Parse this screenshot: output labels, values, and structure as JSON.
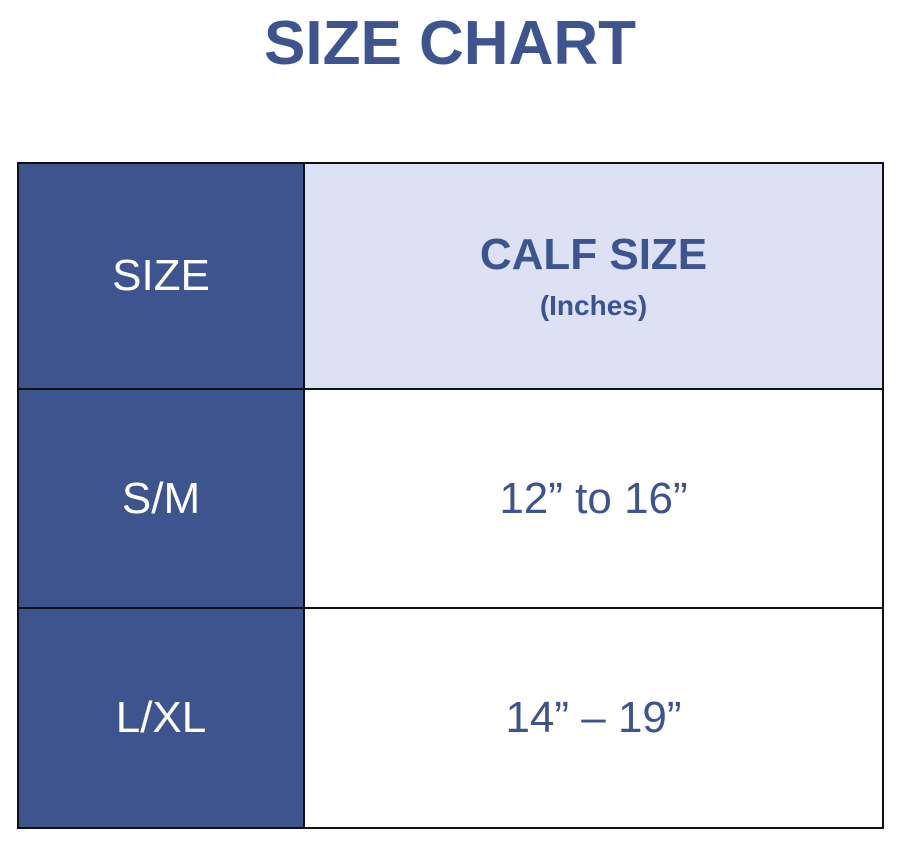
{
  "title": "SIZE CHART",
  "colors": {
    "dark_blue": "#3d548f",
    "light_blue": "#dce2f3",
    "text_blue": "#3d548f"
  },
  "table": {
    "header": {
      "size": "SIZE",
      "calf": "CALF SIZE",
      "unit": "(Inches)"
    },
    "rows": [
      {
        "size": "S/M",
        "calf": "12” to 16”"
      },
      {
        "size": "L/XL",
        "calf": "14” – 19”"
      }
    ]
  }
}
